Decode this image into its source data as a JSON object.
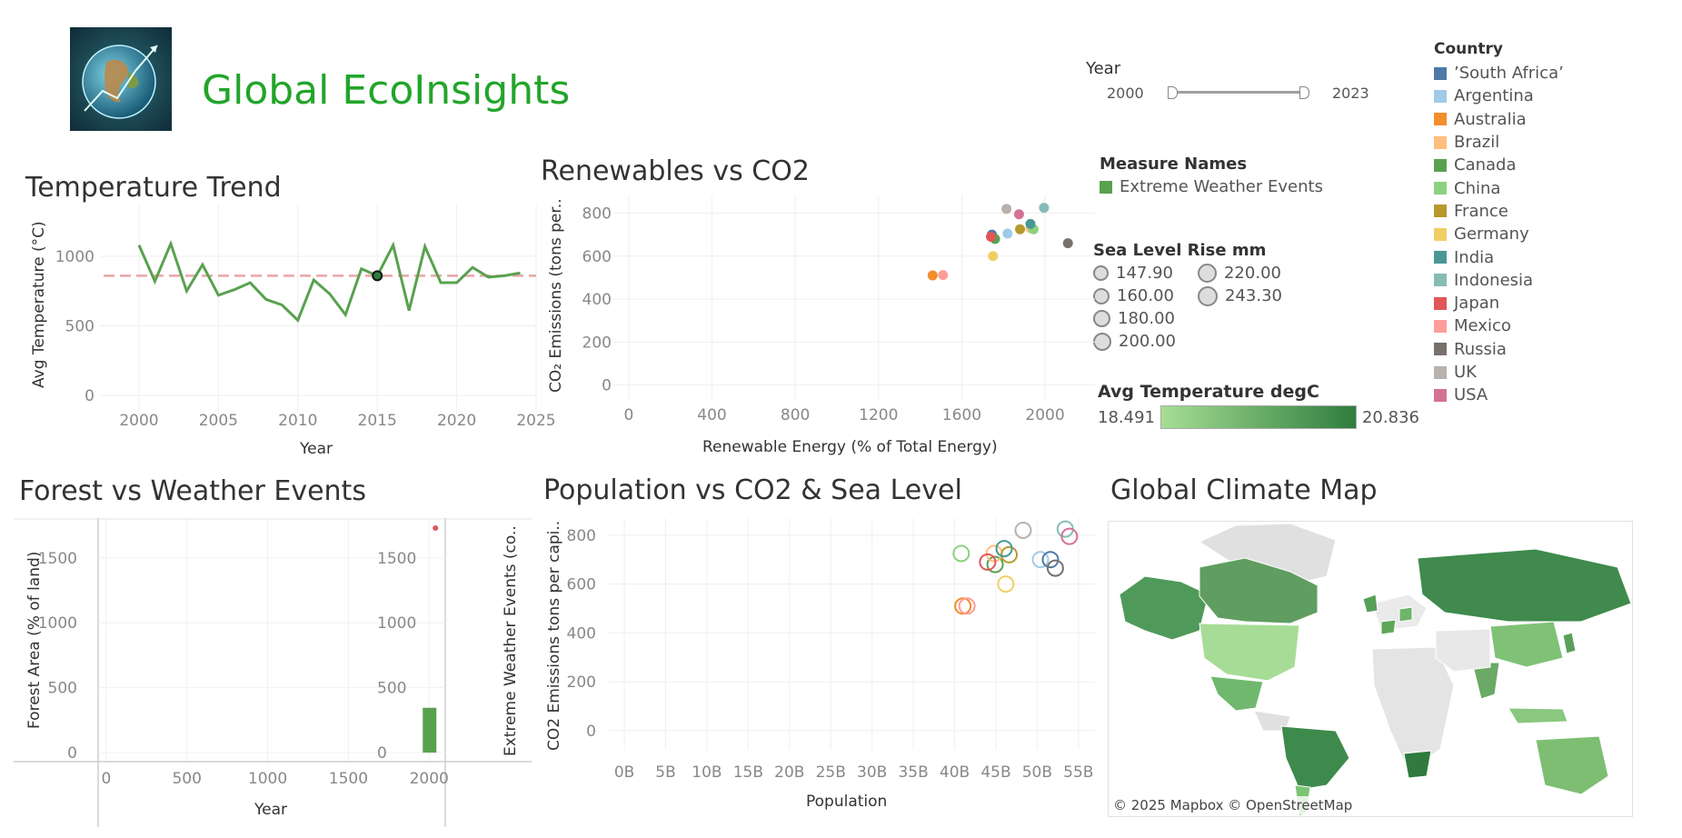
{
  "app": {
    "title": "Global EcoInsights",
    "logo_icon": "earth-globe-icon"
  },
  "year_filter": {
    "label": "Year",
    "min_label": "2000",
    "max_label": "2023"
  },
  "panels": {
    "temperature": {
      "title": "Temperature Trend",
      "x_title": "Year",
      "y_title": "Avg Temperature (°C)"
    },
    "renewables": {
      "title": "Renewables vs CO2",
      "x_title": "Renewable Energy (% of Total Energy)",
      "y_title": "CO₂ Emissions (tons per.."
    },
    "forest": {
      "title": "Forest vs Weather Events",
      "x_title": "Year",
      "y_title": "Forest Area (% of land)",
      "y2_title": "Extreme Weather Events (co.."
    },
    "population": {
      "title": "Population vs CO2 & Sea Level",
      "x_title": "Population",
      "y_title": "CO2 Emissions tons per capi.."
    },
    "map": {
      "title": "Global Climate Map",
      "attribution": "© 2025 Mapbox © OpenStreetMap"
    }
  },
  "legends": {
    "measure": {
      "title": "Measure Names",
      "item": "Extreme Weather Events",
      "color": "#59a14f"
    },
    "sea_level": {
      "title": "Sea Level Rise mm",
      "col1": [
        "147.90",
        "160.00",
        "180.00",
        "200.00"
      ],
      "col2": [
        "220.00",
        "243.30"
      ]
    },
    "temp_gradient": {
      "title": "Avg Temperature degC",
      "min": "18.491",
      "max": "20.836",
      "color_low": "#a6de94",
      "color_high": "#2e7d3e"
    },
    "country": {
      "title": "Country",
      "items": [
        {
          "name": "’South Africa’",
          "color": "#4e79a7"
        },
        {
          "name": "Argentina",
          "color": "#a0cbe8"
        },
        {
          "name": "Australia",
          "color": "#f28e2b"
        },
        {
          "name": "Brazil",
          "color": "#ffbe7d"
        },
        {
          "name": "Canada",
          "color": "#59a14f"
        },
        {
          "name": "China",
          "color": "#8cd17d"
        },
        {
          "name": "France",
          "color": "#b6992d"
        },
        {
          "name": "Germany",
          "color": "#f1ce63"
        },
        {
          "name": "India",
          "color": "#499894"
        },
        {
          "name": "Indonesia",
          "color": "#86bcb6"
        },
        {
          "name": "Japan",
          "color": "#e15759"
        },
        {
          "name": "Mexico",
          "color": "#ff9d9a"
        },
        {
          "name": "Russia",
          "color": "#79706e"
        },
        {
          "name": "UK",
          "color": "#bab0ac"
        },
        {
          "name": "USA",
          "color": "#d37295"
        }
      ]
    }
  },
  "chart_data": [
    {
      "type": "line",
      "title": "Temperature Trend",
      "xlabel": "Year",
      "ylabel": "Avg Temperature (°C)",
      "x": [
        2000,
        2001,
        2002,
        2003,
        2004,
        2005,
        2006,
        2007,
        2008,
        2009,
        2010,
        2011,
        2012,
        2013,
        2014,
        2015,
        2016,
        2017,
        2018,
        2019,
        2020,
        2021,
        2022,
        2023,
        2024
      ],
      "y": [
        1080,
        820,
        1090,
        750,
        940,
        720,
        760,
        810,
        690,
        650,
        540,
        830,
        730,
        580,
        910,
        860,
        1080,
        610,
        1070,
        810,
        810,
        920,
        850,
        860,
        880
      ],
      "xticks": [
        "2000",
        "2005",
        "2010",
        "2015",
        "2020",
        "2025"
      ],
      "yticks": [
        "0",
        "500",
        "1000"
      ],
      "xlim": [
        1998,
        2025
      ],
      "ylim": [
        0,
        1150
      ],
      "reference_line": 860,
      "highlighted_point": {
        "x": 2015,
        "y": 860
      },
      "color": "#59a14f"
    },
    {
      "type": "scatter",
      "title": "Renewables vs CO2",
      "xlabel": "Renewable Energy (% of Total Energy)",
      "ylabel": "CO₂ Emissions (tons per..",
      "xticks": [
        "0",
        "400",
        "800",
        "1200",
        "1600",
        "2000"
      ],
      "yticks": [
        "0",
        "200",
        "400",
        "600",
        "800"
      ],
      "xlim": [
        -30,
        2240
      ],
      "ylim": [
        -40,
        870
      ],
      "points": [
        {
          "country": "’South Africa’",
          "x": 1745,
          "y": 700
        },
        {
          "country": "Argentina",
          "x": 1820,
          "y": 705
        },
        {
          "country": "Australia",
          "x": 1460,
          "y": 510
        },
        {
          "country": "Brazil",
          "x": 1930,
          "y": 730
        },
        {
          "country": "Canada",
          "x": 1760,
          "y": 680
        },
        {
          "country": "China",
          "x": 1945,
          "y": 725
        },
        {
          "country": "France",
          "x": 1880,
          "y": 725
        },
        {
          "country": "Germany",
          "x": 1750,
          "y": 600
        },
        {
          "country": "India",
          "x": 1930,
          "y": 750
        },
        {
          "country": "Indonesia",
          "x": 1995,
          "y": 825
        },
        {
          "country": "Japan",
          "x": 1740,
          "y": 690
        },
        {
          "country": "Mexico",
          "x": 1510,
          "y": 512
        },
        {
          "country": "Russia",
          "x": 2110,
          "y": 660
        },
        {
          "country": "UK",
          "x": 1815,
          "y": 820
        },
        {
          "country": "USA",
          "x": 1875,
          "y": 795
        }
      ]
    },
    {
      "type": "bar",
      "title": "Forest vs Weather Events",
      "xlabel": "Year",
      "ylabel": "Forest Area (% of land)",
      "y2label": "Extreme Weather Events (co..",
      "xticks": [
        "0",
        "500",
        "1000",
        "1500",
        "2000"
      ],
      "yticks": [
        "0",
        "500",
        "1000",
        "1500"
      ],
      "xlim": [
        -50,
        2100
      ],
      "ylim": [
        -70,
        1800
      ],
      "series": [
        {
          "name": "Extreme Weather Events",
          "kind": "bar",
          "x": [
            2000
          ],
          "values": [
            345
          ],
          "color": "#59a14f"
        },
        {
          "kind": "point",
          "x": [
            2000
          ],
          "values": [
            1730
          ],
          "color": "#e15759"
        }
      ]
    },
    {
      "type": "scatter",
      "title": "Population vs CO2 & Sea Level",
      "xlabel": "Population",
      "ylabel": "CO2 Emissions tons per capi..",
      "xticks": [
        "0B",
        "5B",
        "10B",
        "15B",
        "20B",
        "25B",
        "30B",
        "35B",
        "40B",
        "45B",
        "50B",
        "55B"
      ],
      "yticks": [
        "0",
        "200",
        "400",
        "600",
        "800"
      ],
      "xlim": [
        -1,
        57
      ],
      "ylim": [
        -60,
        870
      ],
      "points": [
        {
          "country": "Canada",
          "x": 44.9,
          "y": 680
        },
        {
          "country": "Australia",
          "x": 41.0,
          "y": 510
        },
        {
          "country": "Mexico",
          "x": 41.5,
          "y": 510
        },
        {
          "country": "Germany",
          "x": 46.2,
          "y": 600
        },
        {
          "country": "China",
          "x": 40.8,
          "y": 725
        },
        {
          "country": "Brazil",
          "x": 44.8,
          "y": 725
        },
        {
          "country": "France",
          "x": 46.6,
          "y": 720
        },
        {
          "country": "India",
          "x": 46.0,
          "y": 745
        },
        {
          "country": "Japan",
          "x": 44.0,
          "y": 690
        },
        {
          "country": "Argentina",
          "x": 50.4,
          "y": 700
        },
        {
          "country": "’South Africa’",
          "x": 51.6,
          "y": 700
        },
        {
          "country": "Russia",
          "x": 52.2,
          "y": 665
        },
        {
          "country": "UK",
          "x": 48.3,
          "y": 820
        },
        {
          "country": "Indonesia",
          "x": 53.4,
          "y": 825
        },
        {
          "country": "USA",
          "x": 53.9,
          "y": 795
        }
      ]
    }
  ]
}
